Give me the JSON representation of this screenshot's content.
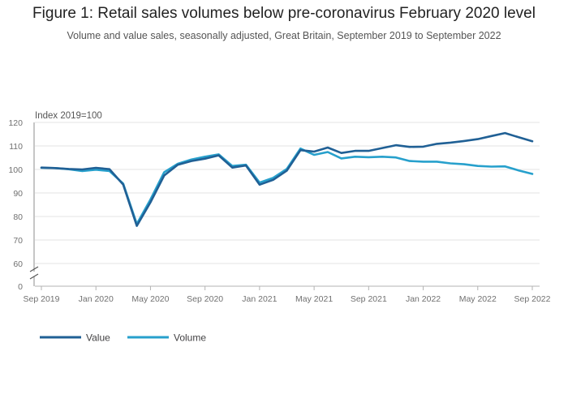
{
  "title": "Figure 1: Retail sales volumes below pre-coronavirus February 2020 level",
  "subtitle": "Volume and value sales, seasonally adjusted, Great Britain, September 2019 to September 2022",
  "colors": {
    "value": "#206095",
    "volume": "#27a0cc",
    "grid": "#e3e3e3",
    "axis": "#b3b3b3"
  },
  "chart_data": {
    "type": "line",
    "ylabel": "Index 2019=100",
    "yticks": [
      "120",
      "110",
      "100",
      "90",
      "80",
      "70",
      "60",
      "0"
    ],
    "ylim": [
      60,
      120
    ],
    "axis_break": true,
    "xticks": [
      "Sep 2019",
      "Jan 2020",
      "May 2020",
      "Sep 2020",
      "Jan 2021",
      "May 2021",
      "Sep 2021",
      "Jan 2022",
      "May 2022",
      "Sep 2022"
    ],
    "x": [
      "Sep 2019",
      "Oct 2019",
      "Nov 2019",
      "Dec 2019",
      "Jan 2020",
      "Feb 2020",
      "Mar 2020",
      "Apr 2020",
      "May 2020",
      "Jun 2020",
      "Jul 2020",
      "Aug 2020",
      "Sep 2020",
      "Oct 2020",
      "Nov 2020",
      "Dec 2020",
      "Jan 2021",
      "Feb 2021",
      "Mar 2021",
      "Apr 2021",
      "May 2021",
      "Jun 2021",
      "Jul 2021",
      "Aug 2021",
      "Sep 2021",
      "Oct 2021",
      "Nov 2021",
      "Dec 2021",
      "Jan 2022",
      "Feb 2022",
      "Mar 2022",
      "Apr 2022",
      "May 2022",
      "Jun 2022",
      "Jul 2022",
      "Aug 2022",
      "Sep 2022"
    ],
    "series": [
      {
        "name": "Value",
        "values": [
          100.8,
          100.6,
          100.2,
          100.0,
          100.7,
          100.1,
          93.6,
          76.0,
          86.0,
          97.4,
          102.0,
          103.6,
          104.6,
          106.0,
          100.8,
          101.7,
          93.5,
          95.6,
          99.5,
          108.2,
          107.6,
          109.3,
          107.0,
          107.9,
          107.9,
          109.1,
          110.3,
          109.6,
          109.7,
          110.9,
          111.4,
          112.1,
          112.9,
          114.2,
          115.5,
          113.7,
          112.0
        ]
      },
      {
        "name": "Volume",
        "values": [
          100.7,
          100.6,
          100.1,
          99.3,
          99.9,
          99.3,
          94.0,
          76.8,
          87.2,
          98.8,
          102.4,
          104.2,
          105.4,
          106.4,
          101.5,
          102.0,
          94.4,
          96.4,
          100.2,
          108.9,
          106.2,
          107.4,
          104.7,
          105.4,
          105.2,
          105.4,
          105.1,
          103.6,
          103.3,
          103.3,
          102.6,
          102.2,
          101.5,
          101.2,
          101.3,
          99.6,
          98.1
        ]
      }
    ],
    "legend": [
      "Value",
      "Volume"
    ],
    "legend_position": "bottom-left"
  }
}
